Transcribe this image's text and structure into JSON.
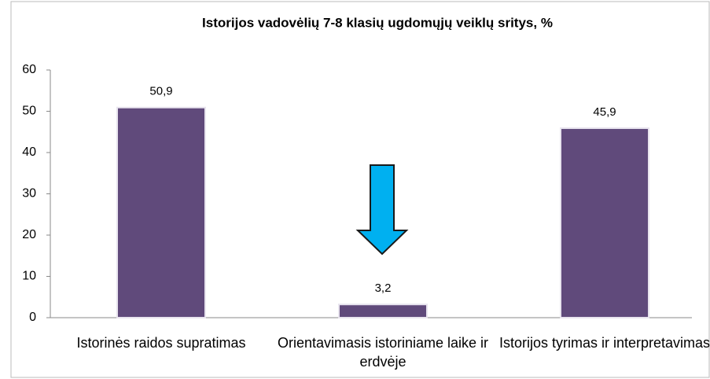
{
  "chart_data": {
    "type": "bar",
    "title": "Istorijos vadovėlių 7-8 klasių  ugdomųjų veiklų sritys, %",
    "categories": [
      "Istorinės raidos supratimas",
      "Orientavimasis istoriniame laike ir erdvėje",
      "Istorijos tyrimas ir interpretavimas"
    ],
    "values": [
      50.9,
      3.2,
      45.9
    ],
    "value_labels": [
      "50,9",
      "3,2",
      "45,9"
    ],
    "color": "#604a7b",
    "ylim": [
      0,
      60
    ],
    "yticks": [
      0,
      10,
      20,
      30,
      40,
      50,
      60
    ],
    "grid": false
  }
}
